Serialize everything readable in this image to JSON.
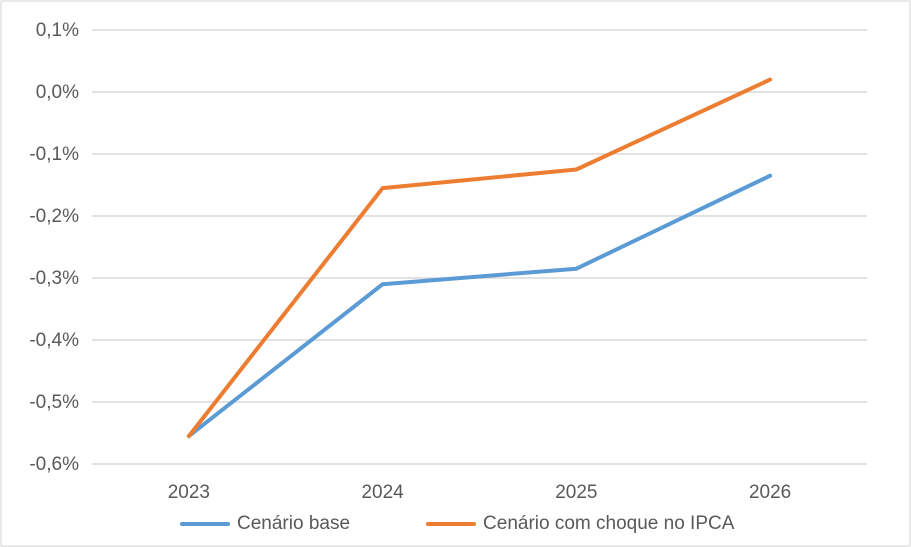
{
  "chart": {
    "background_color": "#FFFFFF",
    "border_color": "#E9E9E9",
    "gridline_color": "#D9D9D9",
    "axis_text_color": "#595959"
  },
  "chart_data": {
    "type": "line",
    "title": "",
    "xlabel": "",
    "ylabel": "",
    "unit": "%",
    "categories": [
      "2023",
      "2024",
      "2025",
      "2026"
    ],
    "series": [
      {
        "name": "Cenário base",
        "color": "#5B9BD5",
        "values": [
          -0.555,
          -0.31,
          -0.285,
          -0.135
        ]
      },
      {
        "name": "Cenário com choque no IPCA",
        "color": "#ED7D31",
        "values": [
          -0.555,
          -0.155,
          -0.125,
          0.02
        ]
      }
    ],
    "ylim": [
      -0.6,
      0.1
    ],
    "yticks": [
      {
        "value": 0.1,
        "label": "0,1%"
      },
      {
        "value": 0.0,
        "label": "0,0%"
      },
      {
        "value": -0.1,
        "label": "-0,1%"
      },
      {
        "value": -0.2,
        "label": "-0,2%"
      },
      {
        "value": -0.3,
        "label": "-0,3%"
      },
      {
        "value": -0.4,
        "label": "-0,4%"
      },
      {
        "value": -0.5,
        "label": "-0,5%"
      },
      {
        "value": -0.6,
        "label": "-0,6%"
      }
    ],
    "grid": true,
    "legend_position": "bottom"
  }
}
